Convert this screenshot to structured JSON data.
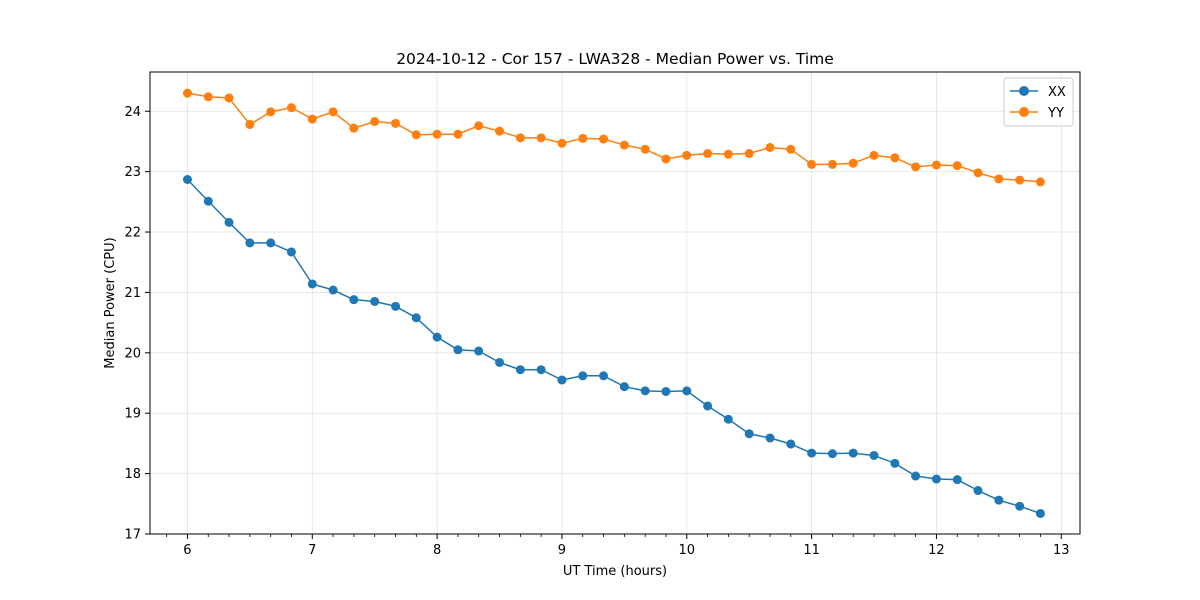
{
  "chart_data": {
    "type": "line",
    "title": "2024-10-12 - Cor 157 - LWA328 - Median Power vs. Time",
    "xlabel": "UT Time (hours)",
    "ylabel": "Median Power (CPU)",
    "xlim": [
      5.7,
      13.15
    ],
    "ylim": [
      17.0,
      24.65
    ],
    "xticks": [
      6,
      7,
      8,
      9,
      10,
      11,
      12,
      13
    ],
    "yticks": [
      17,
      18,
      19,
      20,
      21,
      22,
      23,
      24
    ],
    "grid": true,
    "legend_position": "top-right",
    "x": [
      6.0,
      6.167,
      6.333,
      6.5,
      6.667,
      6.833,
      7.0,
      7.167,
      7.333,
      7.5,
      7.667,
      7.833,
      8.0,
      8.167,
      8.333,
      8.5,
      8.667,
      8.833,
      9.0,
      9.167,
      9.333,
      9.5,
      9.667,
      9.833,
      10.0,
      10.167,
      10.333,
      10.5,
      10.667,
      10.833,
      11.0,
      11.167,
      11.333,
      11.5,
      11.667,
      11.833,
      12.0,
      12.167,
      12.333,
      12.5,
      12.667,
      12.833
    ],
    "series": [
      {
        "name": "XX",
        "color": "#1f77b4",
        "values": [
          22.87,
          22.51,
          22.16,
          21.82,
          21.82,
          21.67,
          21.14,
          21.04,
          20.88,
          20.85,
          20.77,
          20.58,
          20.26,
          20.05,
          20.03,
          19.84,
          19.72,
          19.72,
          19.55,
          19.62,
          19.62,
          19.44,
          19.37,
          19.36,
          19.37,
          19.12,
          18.9,
          18.66,
          18.59,
          18.49,
          18.34,
          18.33,
          18.34,
          18.3,
          18.17,
          17.96,
          17.91,
          17.9,
          17.72,
          17.56,
          17.46,
          17.34
        ]
      },
      {
        "name": "YY",
        "color": "#ff7f0e",
        "values": [
          24.3,
          24.24,
          24.22,
          23.78,
          23.99,
          24.06,
          23.87,
          23.99,
          23.72,
          23.83,
          23.8,
          23.61,
          23.62,
          23.62,
          23.76,
          23.67,
          23.56,
          23.56,
          23.47,
          23.55,
          23.54,
          23.44,
          23.37,
          23.21,
          23.27,
          23.3,
          23.29,
          23.3,
          23.4,
          23.37,
          23.12,
          23.12,
          23.14,
          23.27,
          23.23,
          23.08,
          23.11,
          23.1,
          22.98,
          22.88,
          22.86,
          22.83
        ]
      }
    ]
  }
}
